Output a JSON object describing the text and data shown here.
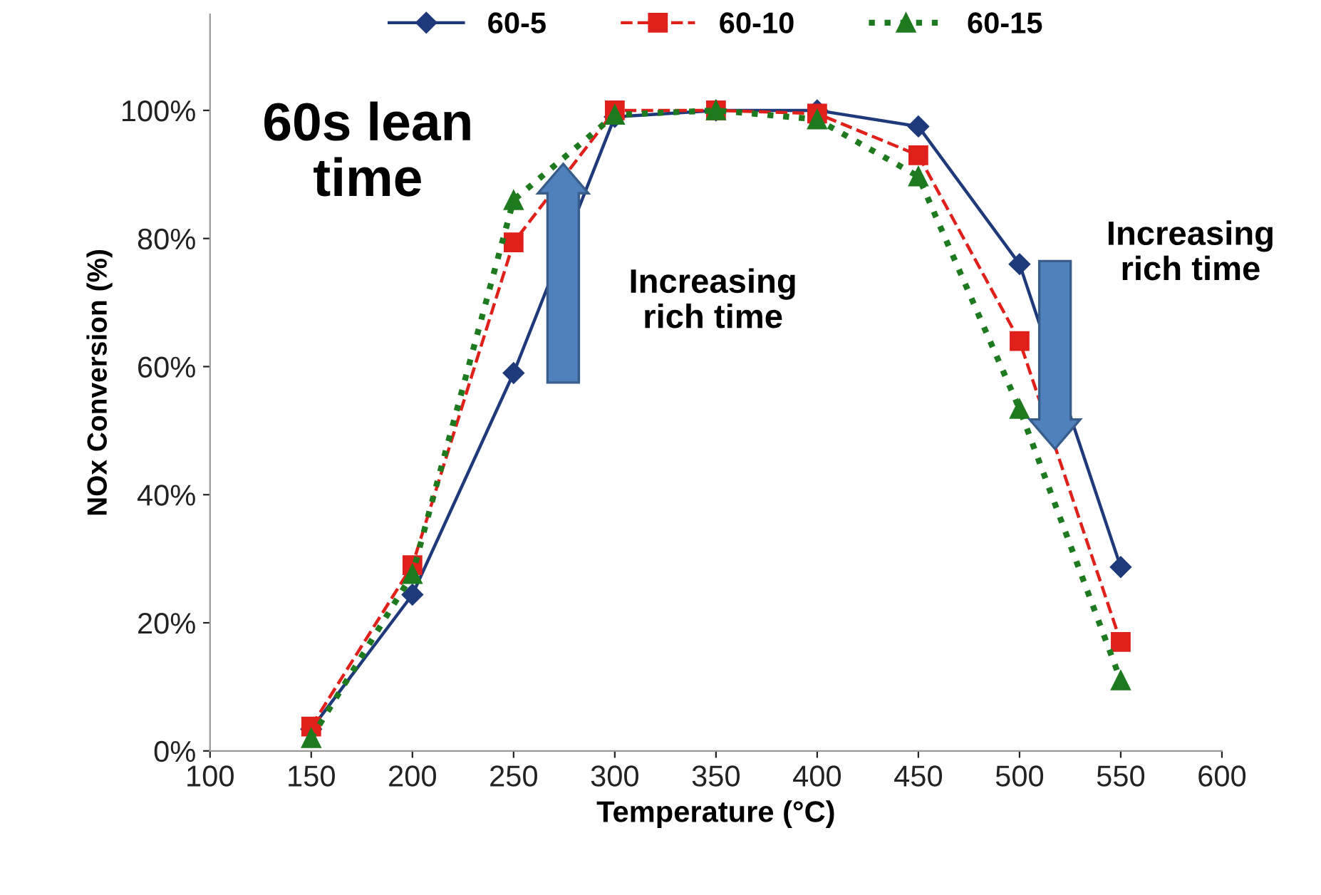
{
  "chart_data": {
    "type": "line",
    "xlabel": "Temperature (°C)",
    "ylabel": "NOx Conversion (%)",
    "x": [
      150,
      200,
      250,
      300,
      350,
      400,
      450,
      500,
      550
    ],
    "series": [
      {
        "name": "60-5",
        "color": "#1f3a7a",
        "marker": "diamond",
        "line_style": "solid",
        "values": [
          3.4,
          24.4,
          59,
          99,
          100,
          100,
          97.5,
          76,
          28.7
        ]
      },
      {
        "name": "60-10",
        "color": "#e0201b",
        "marker": "square",
        "line_style": "dashed",
        "values": [
          3.8,
          29,
          79.4,
          100,
          100,
          99.5,
          93,
          64,
          17
        ]
      },
      {
        "name": "60-15",
        "color": "#1e7a1e",
        "marker": "triangle",
        "line_style": "dotted",
        "values": [
          2,
          27.6,
          86,
          99.3,
          100,
          98.6,
          89.7,
          53.4,
          11
        ]
      }
    ],
    "xlim": [
      100,
      600
    ],
    "xticks": [
      100,
      150,
      200,
      250,
      300,
      350,
      400,
      450,
      500,
      550,
      600
    ],
    "ylim": [
      0,
      115
    ],
    "yticks": [
      {
        "value": 0,
        "label": "0%"
      },
      {
        "value": 20,
        "label": "20%"
      },
      {
        "value": 40,
        "label": "40%"
      },
      {
        "value": 60,
        "label": "60%"
      },
      {
        "value": 80,
        "label": "80%"
      },
      {
        "value": 100,
        "label": "100%"
      }
    ],
    "annotations": [
      "60s lean time",
      "Increasing rich time",
      "Increasing rich time"
    ],
    "grid": false,
    "legend": "top"
  }
}
